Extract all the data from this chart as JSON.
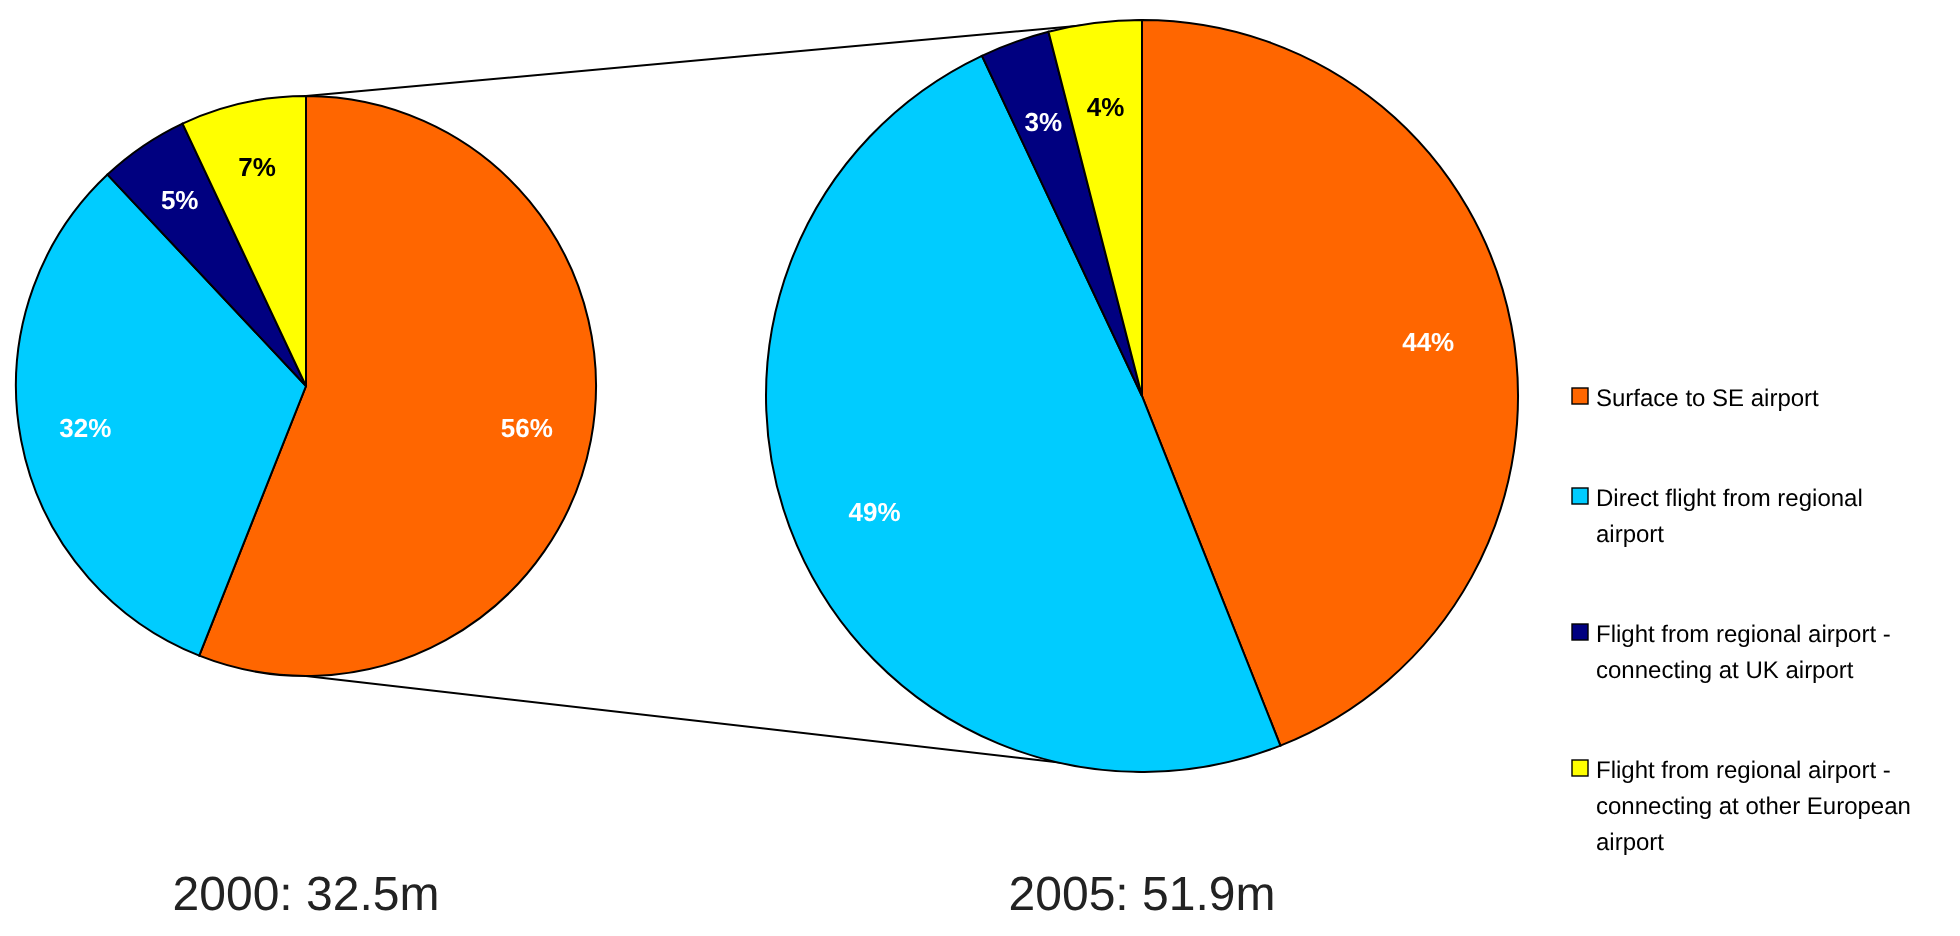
{
  "chart_data": [
    {
      "type": "pie",
      "title": "2000: 32.5m",
      "categories": [
        null,
        null,
        null,
        null
      ],
      "values": [
        56,
        32,
        5,
        7
      ],
      "colors": [
        "#ff6600",
        "#00ccff",
        "#000080",
        "#ffff00"
      ],
      "value_labels": [
        "56%",
        "32%",
        "5%",
        "7%"
      ]
    },
    {
      "type": "pie",
      "title": "2005: 51.9m",
      "categories": [
        "Surface to SE airport",
        "Direct flight from regional airport",
        "Flight from regional airport - connecting at UK airport",
        "Flight from regional airport - connecting at other European airport"
      ],
      "values": [
        44,
        49,
        3,
        4
      ],
      "colors": [
        "#ff6600",
        "#00ccff",
        "#000080",
        "#ffff00"
      ],
      "value_labels": [
        "44%",
        "49%",
        "3%",
        "4%"
      ],
      "legend": "right"
    }
  ]
}
